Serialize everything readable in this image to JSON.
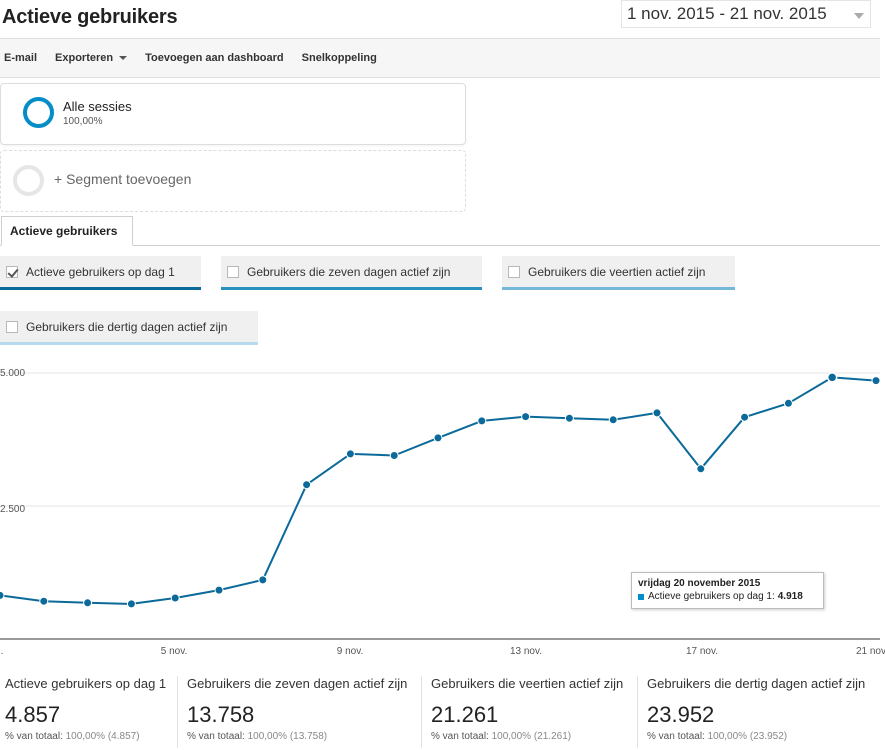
{
  "header": {
    "title": "Actieve gebruikers",
    "date_range": "1 nov. 2015 - 21 nov. 2015"
  },
  "toolbar": {
    "email": "E-mail",
    "export": "Exporteren",
    "add_to_dashboard": "Toevoegen aan dashboard",
    "shortcut": "Snelkoppeling"
  },
  "segments": {
    "active": {
      "name": "Alle sessies",
      "percent": "100,00%"
    },
    "add_label": "+ Segment toevoegen"
  },
  "tabs": {
    "active_tab": "Actieve gebruikers"
  },
  "metrics": [
    {
      "label": "Actieve gebruikers op dag 1",
      "checked": true,
      "color": "#0b6a9a"
    },
    {
      "label": "Gebruikers die zeven dagen actief zijn",
      "checked": false,
      "color": "#2a91bf"
    },
    {
      "label": "Gebruikers die veertien actief zijn",
      "checked": false,
      "color": "#74b8da"
    },
    {
      "label": "Gebruikers die dertig dagen actief zijn",
      "checked": false,
      "color": "#b7dbee"
    }
  ],
  "chart_data": {
    "type": "line",
    "series": [
      {
        "name": "Actieve gebruikers op dag 1",
        "color": "#0b6a9a",
        "x": [
          "2015-11-01",
          "2015-11-02",
          "2015-11-03",
          "2015-11-04",
          "2015-11-05",
          "2015-11-06",
          "2015-11-07",
          "2015-11-08",
          "2015-11-09",
          "2015-11-10",
          "2015-11-11",
          "2015-11-12",
          "2015-11-13",
          "2015-11-14",
          "2015-11-15",
          "2015-11-16",
          "2015-11-17",
          "2015-11-18",
          "2015-11-19",
          "2015-11-20",
          "2015-11-21"
        ],
        "values": [
          820,
          710,
          680,
          660,
          770,
          920,
          1110,
          2900,
          3480,
          3450,
          3780,
          4100,
          4180,
          4150,
          4120,
          4250,
          3200,
          4170,
          4430,
          4918,
          4857
        ]
      }
    ],
    "x_tick_labels": [
      ".",
      "5 nov.",
      "9 nov.",
      "13 nov.",
      "17 nov.",
      "21 nov."
    ],
    "y_tick_labels": [
      "5.000",
      "2.500"
    ],
    "ylim": [
      0,
      5000
    ],
    "grid": true
  },
  "tooltip": {
    "date": "vrijdag 20 november 2015",
    "series_label": "Actieve gebruikers op dag 1:",
    "value": "4.918"
  },
  "summary": [
    {
      "label": "Actieve gebruikers op dag 1",
      "value": "4.857",
      "sub_prefix": "% van totaal:",
      "sub_value": "100,00% (4.857)"
    },
    {
      "label": "Gebruikers die zeven dagen actief zijn",
      "value": "13.758",
      "sub_prefix": "% van totaal:",
      "sub_value": "100,00% (13.758)"
    },
    {
      "label": "Gebruikers die veertien actief zijn",
      "value": "21.261",
      "sub_prefix": "% van totaal:",
      "sub_value": "100,00% (21.261)"
    },
    {
      "label": "Gebruikers die dertig dagen actief zijn",
      "value": "23.952",
      "sub_prefix": "% van totaal:",
      "sub_value": "100,00% (23.952)"
    }
  ]
}
